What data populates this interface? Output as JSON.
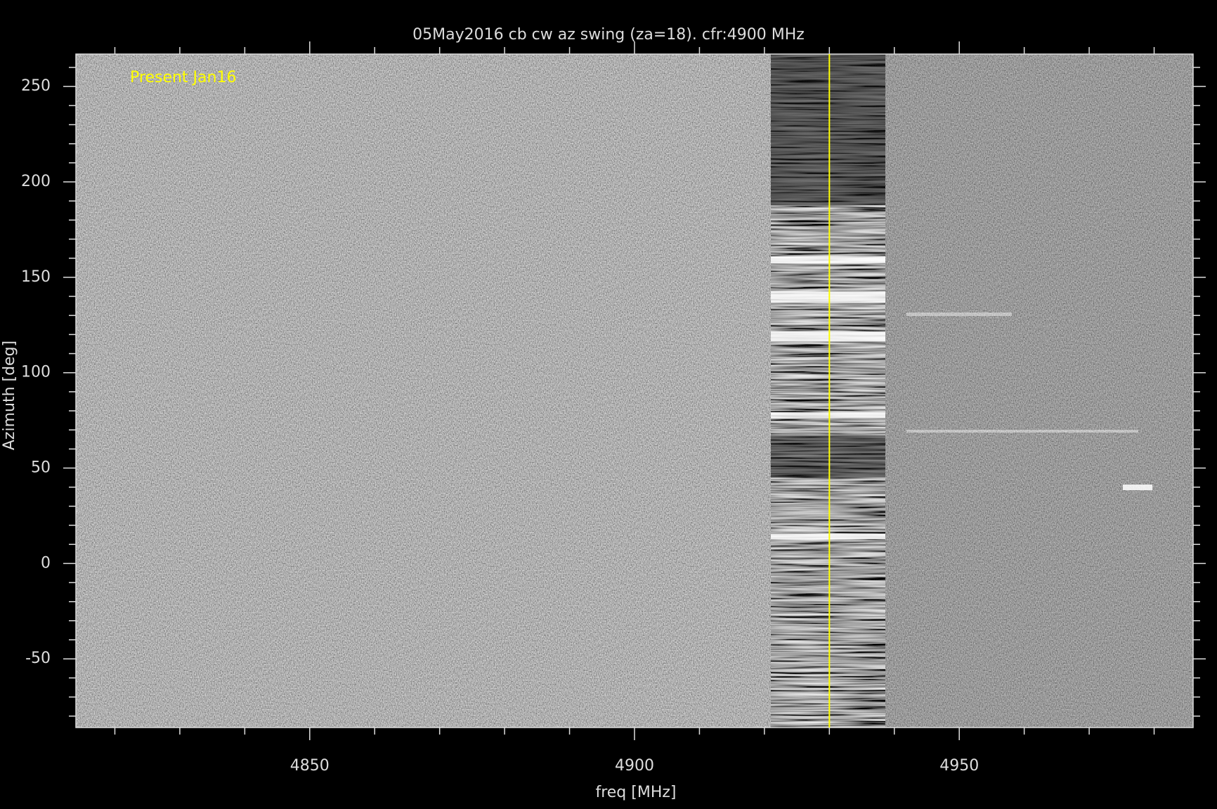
{
  "chart_data": {
    "type": "heatmap",
    "title": "05May2016 cb cw az swing (za=18). cfr:4900 MHz",
    "xlabel": "freq [MHz]",
    "ylabel": "Azimuth [deg]",
    "annotation": "Present Jan16",
    "annotation_color": "#ffff00",
    "xlim": [
      4814,
      4986
    ],
    "ylim": [
      -86,
      267
    ],
    "xticks": [
      4850,
      4900,
      4950
    ],
    "yticks": [
      -50,
      0,
      50,
      100,
      150,
      200,
      250
    ],
    "xminorticks": [
      4820,
      4830,
      4840,
      4860,
      4870,
      4880,
      4890,
      4910,
      4920,
      4930,
      4940,
      4960,
      4970,
      4980
    ],
    "yminorticks": [
      -80,
      -70,
      -60,
      -40,
      -30,
      -20,
      -10,
      10,
      20,
      30,
      40,
      60,
      70,
      80,
      90,
      110,
      120,
      130,
      140,
      160,
      170,
      180,
      190,
      210,
      220,
      230,
      240,
      260
    ],
    "vline": 4930,
    "vline_color": "#ffff00"
  }
}
